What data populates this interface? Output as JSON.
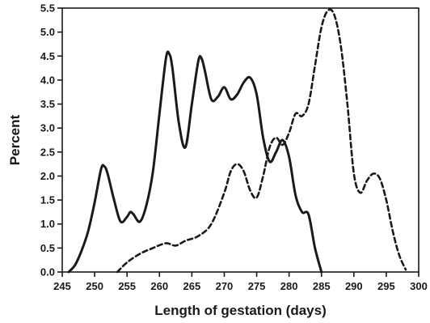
{
  "chart_data": {
    "type": "line",
    "title": "",
    "xlabel": "Length of gestation (days)",
    "ylabel": "Percent",
    "xlim": [
      245,
      300
    ],
    "ylim": [
      0,
      5.5
    ],
    "x_ticks": [
      "245",
      "250",
      "255",
      "260",
      "265",
      "270",
      "275",
      "280",
      "285",
      "290",
      "295",
      "300"
    ],
    "y_ticks": [
      "0.0",
      "0.5",
      "1.0",
      "1.5",
      "2.0",
      "2.5",
      "3.0",
      "3.5",
      "4.0",
      "4.5",
      "5.0",
      "5.5"
    ],
    "grid": false,
    "legend": "none",
    "series": [
      {
        "style": "solid",
        "color": "#1a1a1a",
        "points": [
          [
            246,
            0.0
          ],
          [
            247,
            0.15
          ],
          [
            248,
            0.45
          ],
          [
            249,
            0.85
          ],
          [
            250,
            1.45
          ],
          [
            251,
            2.15
          ],
          [
            251.5,
            2.2
          ],
          [
            252,
            2.05
          ],
          [
            253,
            1.5
          ],
          [
            254,
            1.05
          ],
          [
            255,
            1.15
          ],
          [
            255.5,
            1.25
          ],
          [
            256,
            1.2
          ],
          [
            257,
            1.05
          ],
          [
            258,
            1.4
          ],
          [
            259,
            2.1
          ],
          [
            260,
            3.3
          ],
          [
            261,
            4.45
          ],
          [
            261.5,
            4.55
          ],
          [
            262,
            4.25
          ],
          [
            263,
            3.1
          ],
          [
            264,
            2.6
          ],
          [
            265,
            3.5
          ],
          [
            266,
            4.4
          ],
          [
            266.5,
            4.45
          ],
          [
            267,
            4.2
          ],
          [
            268,
            3.6
          ],
          [
            269,
            3.65
          ],
          [
            270,
            3.85
          ],
          [
            271,
            3.6
          ],
          [
            272,
            3.7
          ],
          [
            273,
            3.95
          ],
          [
            274,
            4.05
          ],
          [
            275,
            3.7
          ],
          [
            276,
            2.8
          ],
          [
            277,
            2.3
          ],
          [
            278,
            2.5
          ],
          [
            279,
            2.75
          ],
          [
            280,
            2.4
          ],
          [
            281,
            1.6
          ],
          [
            282,
            1.25
          ],
          [
            283,
            1.2
          ],
          [
            284,
            0.5
          ],
          [
            285,
            0.0
          ]
        ]
      },
      {
        "style": "dashed",
        "color": "#1a1a1a",
        "points": [
          [
            253.5,
            0.0
          ],
          [
            255,
            0.2
          ],
          [
            257,
            0.38
          ],
          [
            259,
            0.5
          ],
          [
            261,
            0.6
          ],
          [
            262.5,
            0.55
          ],
          [
            264,
            0.65
          ],
          [
            266,
            0.75
          ],
          [
            268,
            1.0
          ],
          [
            270,
            1.65
          ],
          [
            271,
            2.1
          ],
          [
            272,
            2.25
          ],
          [
            273,
            2.1
          ],
          [
            274,
            1.7
          ],
          [
            275,
            1.55
          ],
          [
            276,
            2.0
          ],
          [
            277,
            2.6
          ],
          [
            278,
            2.8
          ],
          [
            279,
            2.65
          ],
          [
            280,
            2.9
          ],
          [
            281,
            3.3
          ],
          [
            282,
            3.25
          ],
          [
            283,
            3.5
          ],
          [
            284,
            4.3
          ],
          [
            285,
            5.1
          ],
          [
            286,
            5.45
          ],
          [
            287,
            5.35
          ],
          [
            288,
            4.7
          ],
          [
            289,
            3.5
          ],
          [
            290,
            2.05
          ],
          [
            291,
            1.65
          ],
          [
            292,
            1.9
          ],
          [
            293,
            2.05
          ],
          [
            294,
            1.95
          ],
          [
            295,
            1.5
          ],
          [
            296,
            0.85
          ],
          [
            297,
            0.35
          ],
          [
            298,
            0.05
          ]
        ]
      }
    ]
  }
}
